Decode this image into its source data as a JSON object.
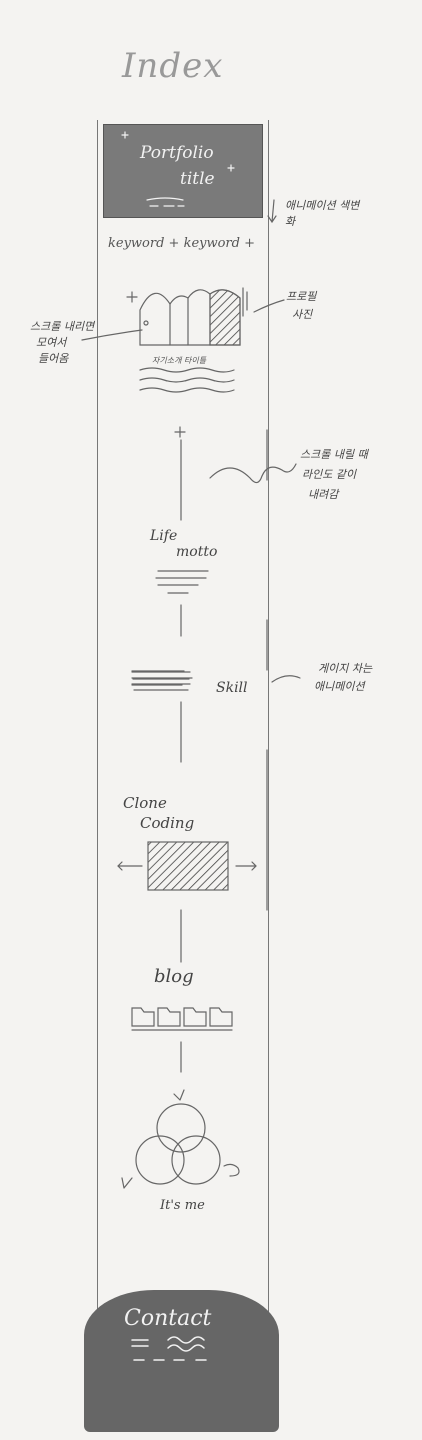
{
  "page_title": "Index",
  "header": {
    "title_line1": "Portfolio",
    "title_line2": "title"
  },
  "keywords": "keyword + keyword +",
  "notes": {
    "header_note": "애니메이션 색변화",
    "scroll_left_l1": "스크롤 내리면",
    "scroll_left_l2": "모여서",
    "scroll_left_l3": "들어옴",
    "profile_note_l1": "프로필",
    "profile_note_l2": "사진",
    "scroll_right_l1": "스크롤 내릴 때",
    "scroll_right_l2": "라인도 같이",
    "scroll_right_l3": "내려감",
    "skill_note_l1": "게이지 차는",
    "skill_note_l2": "애니메이션"
  },
  "intro_caption": "자기소개 타이틀",
  "motto": {
    "line1": "Life",
    "line2": "motto"
  },
  "skill_label": "Skill",
  "clone": {
    "line1": "Clone",
    "line2": "Coding"
  },
  "blog_label": "blog",
  "me_label": "It's me",
  "contact_label": "Contact"
}
